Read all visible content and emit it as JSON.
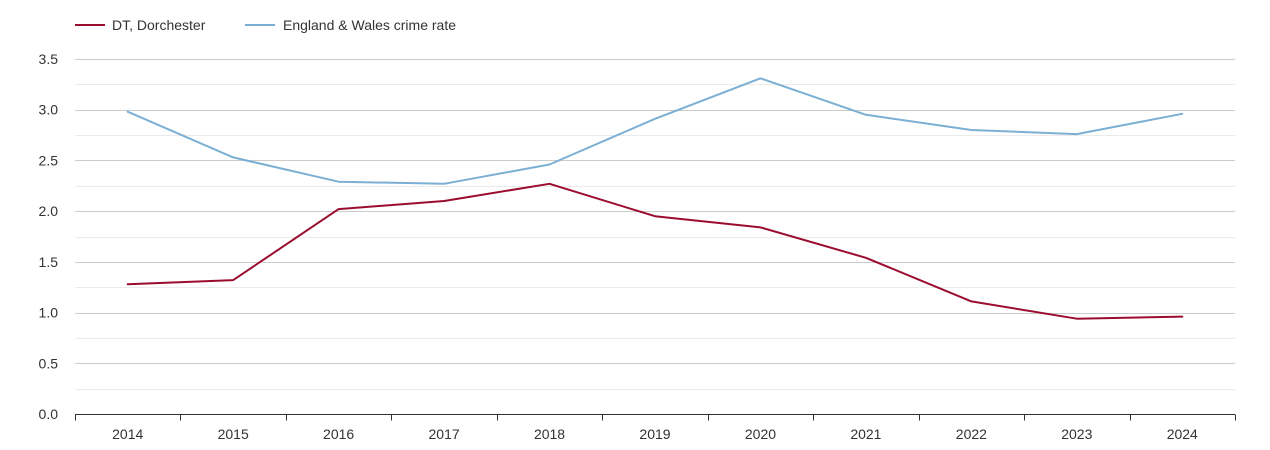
{
  "chart_data": {
    "type": "line",
    "title": "",
    "xlabel": "",
    "ylabel": "",
    "categories": [
      "2014",
      "2015",
      "2016",
      "2017",
      "2018",
      "2019",
      "2020",
      "2021",
      "2022",
      "2023",
      "2024"
    ],
    "series": [
      {
        "name": "DT, Dorchester",
        "color": "#9b0d2f",
        "values": [
          1.28,
          1.32,
          2.02,
          2.1,
          2.27,
          1.95,
          1.84,
          1.54,
          1.11,
          0.94,
          0.96
        ]
      },
      {
        "name": "England & Wales crime rate",
        "color": "#7bafd4",
        "values": [
          2.98,
          2.53,
          2.29,
          2.27,
          2.46,
          2.91,
          3.31,
          2.95,
          2.8,
          2.76,
          2.96
        ]
      }
    ],
    "ylim": [
      0,
      3.5
    ],
    "y_ticks": [
      "0.0",
      "0.5",
      "1.0",
      "1.5",
      "2.0",
      "2.5",
      "3.0",
      "3.5"
    ],
    "grid": true,
    "legend_position": "top-left"
  }
}
